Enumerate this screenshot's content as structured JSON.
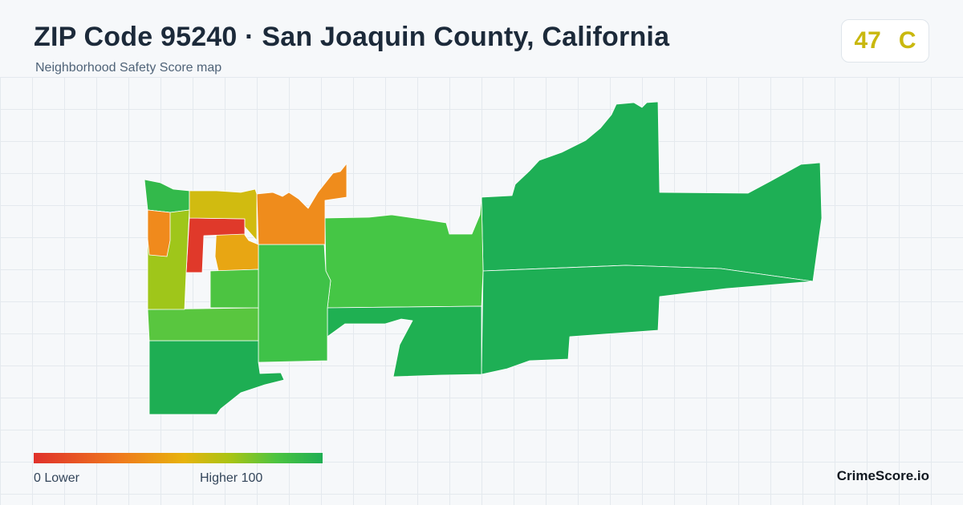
{
  "header": {
    "title": "ZIP Code 95240 · San Joaquin County, California",
    "subtitle": "Neighborhood Safety Score map"
  },
  "grade": {
    "score": "47",
    "letter": "C",
    "color": "#c9b80e"
  },
  "legend": {
    "min_label": "0  Lower",
    "max_label": "Higher  100",
    "color_low": "#e0312b",
    "color_high": "#1fae53"
  },
  "brand": "CrimeScore.io",
  "map": {
    "regions": [
      {
        "name": "far-east-north",
        "color": "#1eaf55"
      },
      {
        "name": "far-east-south",
        "color": "#1eaf55"
      },
      {
        "name": "east-central-north",
        "color": "#45c645"
      },
      {
        "name": "east-central-south",
        "color": "#1fb052"
      },
      {
        "name": "central-south",
        "color": "#3fc248"
      },
      {
        "name": "south-west",
        "color": "#1eae53"
      },
      {
        "name": "south-west-strip",
        "color": "#59c63f"
      },
      {
        "name": "north-orange",
        "color": "#ef8c1c"
      },
      {
        "name": "mid-orange",
        "color": "#e8a613"
      },
      {
        "name": "mid-green",
        "color": "#4cc441"
      },
      {
        "name": "west-green-top",
        "color": "#33b94b"
      },
      {
        "name": "downtown-red",
        "color": "#e0392a"
      },
      {
        "name": "yellow-block",
        "color": "#d1bb10"
      },
      {
        "name": "lime-block",
        "color": "#9fc61a"
      },
      {
        "name": "orange-west",
        "color": "#f08a1c"
      }
    ]
  }
}
